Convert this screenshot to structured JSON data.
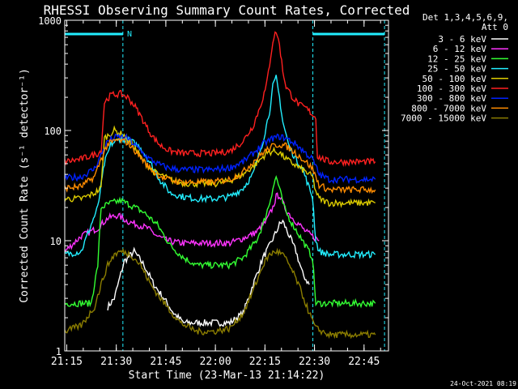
{
  "chart_data": {
    "type": "line",
    "title": "RHESSI Observing Summary Count Rates, Corrected",
    "xlabel": "Start Time (23-Mar-13 21:14:22)",
    "ylabel": "Corrected Count Rate (s⁻¹ detector⁻¹)",
    "y_scale": "log",
    "ylim": [
      1,
      1000
    ],
    "xlim_minutes": [
      0,
      98
    ],
    "x_ticks": [
      {
        "label": "21:15",
        "minute": 0.6
      },
      {
        "label": "21:30",
        "minute": 15.6
      },
      {
        "label": "21:45",
        "minute": 30.6
      },
      {
        "label": "22:00",
        "minute": 45.6
      },
      {
        "label": "22:15",
        "minute": 60.6
      },
      {
        "label": "22:30",
        "minute": 75.6
      },
      {
        "label": "22:45",
        "minute": 90.6
      }
    ],
    "y_ticks": [
      {
        "label": "1",
        "value": 1
      },
      {
        "label": "10",
        "value": 10
      },
      {
        "label": "100",
        "value": 100
      },
      {
        "label": "1000",
        "value": 1000
      }
    ],
    "legend_header": [
      "Det 1,3,4,5,6,9,",
      "Att 0"
    ],
    "legend_position": "right",
    "footer_date": "24-Oct-2021 08:19",
    "night_marker": "N",
    "vertical_lines_minutes": [
      17.6,
      75.1,
      96.8
    ],
    "series": [
      {
        "name": "3 - 6 keV",
        "color": "#ffffff",
        "points": [
          [
            13,
            2.5
          ],
          [
            15,
            3
          ],
          [
            18,
            6.5
          ],
          [
            21,
            8
          ],
          [
            24,
            6
          ],
          [
            27,
            4
          ],
          [
            30,
            3
          ],
          [
            33,
            2.2
          ],
          [
            36,
            1.8
          ],
          [
            40,
            1.8
          ],
          [
            50,
            1.8
          ],
          [
            54,
            2.2
          ],
          [
            57,
            4
          ],
          [
            60,
            7
          ],
          [
            62,
            9
          ],
          [
            64,
            12
          ],
          [
            65,
            14
          ],
          [
            66,
            15
          ],
          [
            68,
            11
          ],
          [
            70,
            8
          ],
          [
            72,
            5
          ],
          [
            74,
            4
          ]
        ]
      },
      {
        "name": "6 - 12 keV",
        "color": "#ff33ff",
        "points": [
          [
            0,
            8
          ],
          [
            5,
            11
          ],
          [
            10,
            13
          ],
          [
            13,
            16
          ],
          [
            16,
            17
          ],
          [
            19,
            15
          ],
          [
            22,
            14
          ],
          [
            25,
            13
          ],
          [
            28,
            11
          ],
          [
            31,
            10
          ],
          [
            35,
            9.5
          ],
          [
            40,
            9.5
          ],
          [
            45,
            9.5
          ],
          [
            50,
            9.5
          ],
          [
            54,
            10.5
          ],
          [
            58,
            12
          ],
          [
            61,
            15
          ],
          [
            63,
            20
          ],
          [
            64,
            25
          ],
          [
            65,
            26
          ],
          [
            66,
            22
          ],
          [
            67,
            19
          ],
          [
            69,
            16
          ],
          [
            71,
            14
          ],
          [
            73,
            12
          ],
          [
            75,
            11
          ],
          [
            77,
            10
          ]
        ]
      },
      {
        "name": "12 - 25 keV",
        "color": "#33ff33",
        "points": [
          [
            0,
            2.7
          ],
          [
            8,
            2.7
          ],
          [
            10,
            6
          ],
          [
            11,
            20
          ],
          [
            14,
            22
          ],
          [
            17,
            23
          ],
          [
            20,
            21
          ],
          [
            24,
            18
          ],
          [
            28,
            14
          ],
          [
            32,
            9
          ],
          [
            36,
            7
          ],
          [
            40,
            6
          ],
          [
            45,
            6
          ],
          [
            50,
            6
          ],
          [
            54,
            7
          ],
          [
            58,
            10
          ],
          [
            60,
            14
          ],
          [
            62,
            22
          ],
          [
            63,
            30
          ],
          [
            64,
            38
          ],
          [
            65,
            30
          ],
          [
            66,
            22
          ],
          [
            67,
            18
          ],
          [
            69,
            14
          ],
          [
            72,
            10
          ],
          [
            75,
            7
          ],
          [
            76,
            2.7
          ],
          [
            80,
            2.7
          ],
          [
            94,
            2.7
          ]
        ]
      },
      {
        "name": "25 - 50 keV",
        "color": "#22eeff",
        "points": [
          [
            0,
            7.5
          ],
          [
            5,
            8
          ],
          [
            8,
            14
          ],
          [
            10,
            20
          ],
          [
            12,
            50
          ],
          [
            14,
            75
          ],
          [
            17,
            85
          ],
          [
            20,
            80
          ],
          [
            23,
            70
          ],
          [
            26,
            50
          ],
          [
            29,
            35
          ],
          [
            32,
            27
          ],
          [
            36,
            25
          ],
          [
            40,
            24
          ],
          [
            45,
            24
          ],
          [
            50,
            25
          ],
          [
            54,
            30
          ],
          [
            57,
            40
          ],
          [
            60,
            80
          ],
          [
            62,
            150
          ],
          [
            63,
            250
          ],
          [
            64,
            300
          ],
          [
            65,
            200
          ],
          [
            66,
            120
          ],
          [
            68,
            70
          ],
          [
            70,
            55
          ],
          [
            72,
            45
          ],
          [
            74,
            30
          ],
          [
            75,
            25
          ],
          [
            76,
            10
          ],
          [
            77,
            8
          ],
          [
            80,
            7.5
          ],
          [
            90,
            7.5
          ],
          [
            94,
            7.5
          ]
        ]
      },
      {
        "name": "50 - 100 keV",
        "color": "#ddcc00",
        "points": [
          [
            0,
            24
          ],
          [
            5,
            24
          ],
          [
            9,
            27
          ],
          [
            11,
            30
          ],
          [
            12,
            85
          ],
          [
            15,
            100
          ],
          [
            18,
            90
          ],
          [
            21,
            70
          ],
          [
            24,
            52
          ],
          [
            27,
            42
          ],
          [
            30,
            38
          ],
          [
            34,
            34
          ],
          [
            38,
            33
          ],
          [
            42,
            33
          ],
          [
            46,
            33
          ],
          [
            50,
            35
          ],
          [
            54,
            40
          ],
          [
            58,
            50
          ],
          [
            61,
            62
          ],
          [
            63,
            65
          ],
          [
            65,
            63
          ],
          [
            67,
            55
          ],
          [
            70,
            48
          ],
          [
            73,
            42
          ],
          [
            75,
            38
          ],
          [
            76,
            28
          ],
          [
            77,
            24
          ],
          [
            80,
            22
          ],
          [
            90,
            22
          ],
          [
            94,
            22
          ]
        ]
      },
      {
        "name": "100 - 300 keV",
        "color": "#ff2020",
        "points": [
          [
            0,
            52
          ],
          [
            5,
            55
          ],
          [
            10,
            62
          ],
          [
            11,
            65
          ],
          [
            12,
            180
          ],
          [
            14,
            210
          ],
          [
            17,
            215
          ],
          [
            19,
            200
          ],
          [
            21,
            170
          ],
          [
            23,
            135
          ],
          [
            25,
            105
          ],
          [
            27,
            85
          ],
          [
            29,
            73
          ],
          [
            32,
            65
          ],
          [
            36,
            62
          ],
          [
            40,
            62
          ],
          [
            45,
            62
          ],
          [
            50,
            65
          ],
          [
            54,
            80
          ],
          [
            57,
            110
          ],
          [
            59,
            160
          ],
          [
            61,
            250
          ],
          [
            62,
            400
          ],
          [
            63,
            650
          ],
          [
            64,
            800
          ],
          [
            65,
            600
          ],
          [
            66,
            350
          ],
          [
            67,
            250
          ],
          [
            69,
            200
          ],
          [
            71,
            170
          ],
          [
            73,
            160
          ],
          [
            75,
            140
          ],
          [
            76,
            130
          ],
          [
            76.5,
            58
          ],
          [
            80,
            52
          ],
          [
            90,
            52
          ],
          [
            94,
            52
          ]
        ]
      },
      {
        "name": "300 - 800 keV",
        "color": "#0022ff",
        "points": [
          [
            0,
            37
          ],
          [
            5,
            38
          ],
          [
            9,
            45
          ],
          [
            11,
            60
          ],
          [
            13,
            80
          ],
          [
            16,
            88
          ],
          [
            19,
            85
          ],
          [
            22,
            70
          ],
          [
            25,
            57
          ],
          [
            28,
            50
          ],
          [
            31,
            46
          ],
          [
            35,
            44
          ],
          [
            40,
            44
          ],
          [
            45,
            44
          ],
          [
            50,
            46
          ],
          [
            54,
            52
          ],
          [
            57,
            62
          ],
          [
            60,
            75
          ],
          [
            63,
            85
          ],
          [
            65,
            88
          ],
          [
            67,
            85
          ],
          [
            70,
            75
          ],
          [
            73,
            62
          ],
          [
            75,
            55
          ],
          [
            77,
            40
          ],
          [
            80,
            36
          ],
          [
            90,
            36
          ],
          [
            94,
            36
          ]
        ]
      },
      {
        "name": "800 - 7000 keV",
        "color": "#ff8c00",
        "points": [
          [
            0,
            30
          ],
          [
            5,
            31
          ],
          [
            9,
            38
          ],
          [
            11,
            55
          ],
          [
            13,
            75
          ],
          [
            16,
            82
          ],
          [
            19,
            78
          ],
          [
            22,
            62
          ],
          [
            25,
            48
          ],
          [
            28,
            40
          ],
          [
            31,
            36
          ],
          [
            35,
            34
          ],
          [
            40,
            34
          ],
          [
            45,
            34
          ],
          [
            50,
            36
          ],
          [
            54,
            42
          ],
          [
            57,
            52
          ],
          [
            60,
            63
          ],
          [
            63,
            72
          ],
          [
            65,
            75
          ],
          [
            67,
            72
          ],
          [
            70,
            62
          ],
          [
            73,
            52
          ],
          [
            75,
            45
          ],
          [
            77,
            32
          ],
          [
            80,
            29
          ],
          [
            90,
            29
          ],
          [
            94,
            29
          ]
        ]
      },
      {
        "name": "7000 - 15000 keV",
        "color": "#8b7d00",
        "points": [
          [
            0,
            1.5
          ],
          [
            5,
            1.7
          ],
          [
            9,
            2.5
          ],
          [
            11,
            4
          ],
          [
            13,
            6
          ],
          [
            15,
            7.5
          ],
          [
            17,
            8
          ],
          [
            20,
            7.5
          ],
          [
            23,
            6
          ],
          [
            26,
            4
          ],
          [
            29,
            3
          ],
          [
            32,
            2.3
          ],
          [
            35,
            1.8
          ],
          [
            40,
            1.5
          ],
          [
            45,
            1.5
          ],
          [
            50,
            1.6
          ],
          [
            54,
            2.2
          ],
          [
            57,
            3.5
          ],
          [
            60,
            6
          ],
          [
            62,
            7.5
          ],
          [
            64,
            8
          ],
          [
            66,
            7.5
          ],
          [
            68,
            6
          ],
          [
            70,
            4.5
          ],
          [
            72,
            3.2
          ],
          [
            74,
            2.2
          ],
          [
            76,
            1.6
          ],
          [
            80,
            1.4
          ],
          [
            90,
            1.4
          ],
          [
            94,
            1.4
          ]
        ]
      }
    ]
  }
}
